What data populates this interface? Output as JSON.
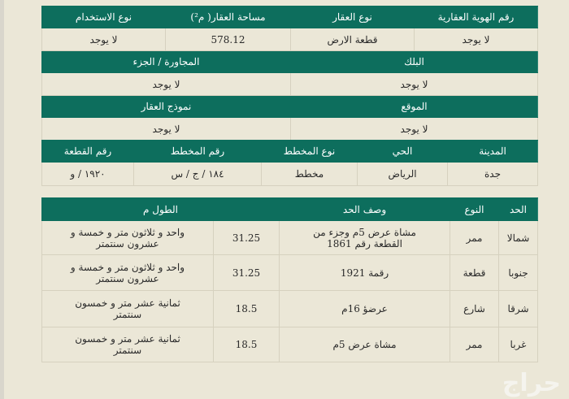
{
  "section1": {
    "headers": [
      "رقم الهوية العقارية",
      "نوع العقار",
      "مساحة العقار( م²)",
      "نوع الاستخدام"
    ],
    "values": [
      "لا يوجد",
      "قطعة الارض",
      "578.12",
      "لا يوجد"
    ]
  },
  "section2": {
    "headers": [
      "البلك",
      "المجاورة / الجزء"
    ],
    "values": [
      "لا يوجد",
      "لا يوجد"
    ]
  },
  "section3": {
    "headers": [
      "الموقع",
      "نموذج العقار"
    ],
    "values": [
      "لا يوجد",
      "لا يوجد"
    ]
  },
  "section4": {
    "headers": [
      "المدينة",
      "الحي",
      "نوع المخطط",
      "رقم المخطط",
      "رقم القطعة"
    ],
    "values": [
      "جدة",
      "الرياض",
      "مخطط",
      "١٨٤ / ج / س",
      "١٩٢٠ / و"
    ]
  },
  "boundaries": {
    "headers": [
      "الحد",
      "النوع",
      "وصف الحد",
      "الطول م"
    ],
    "rows": [
      {
        "side": "شمالا",
        "type": "ممر",
        "desc": "مشاة عرض 5م وجزء من القطعة رقم 1861",
        "length": "31.25",
        "length_text": "واحد و ثلاثون متر و خمسة و عشرون سنتمتر"
      },
      {
        "side": "جنوبا",
        "type": "قطعة",
        "desc": "رقمة 1921",
        "length": "31.25",
        "length_text": "واحد و ثلاثون متر و خمسة و عشرون سنتمتر"
      },
      {
        "side": "شرقا",
        "type": "شارع",
        "desc": "عرضؤ 16م",
        "length": "18.5",
        "length_text": "ثمانية عشر متر و خمسون سنتمتر"
      },
      {
        "side": "غربا",
        "type": "ممر",
        "desc": "مشاة عرض 5م",
        "length": "18.5",
        "length_text": "ثمانية عشر متر و خمسون سنتمتر"
      }
    ]
  },
  "watermark": "حراج"
}
